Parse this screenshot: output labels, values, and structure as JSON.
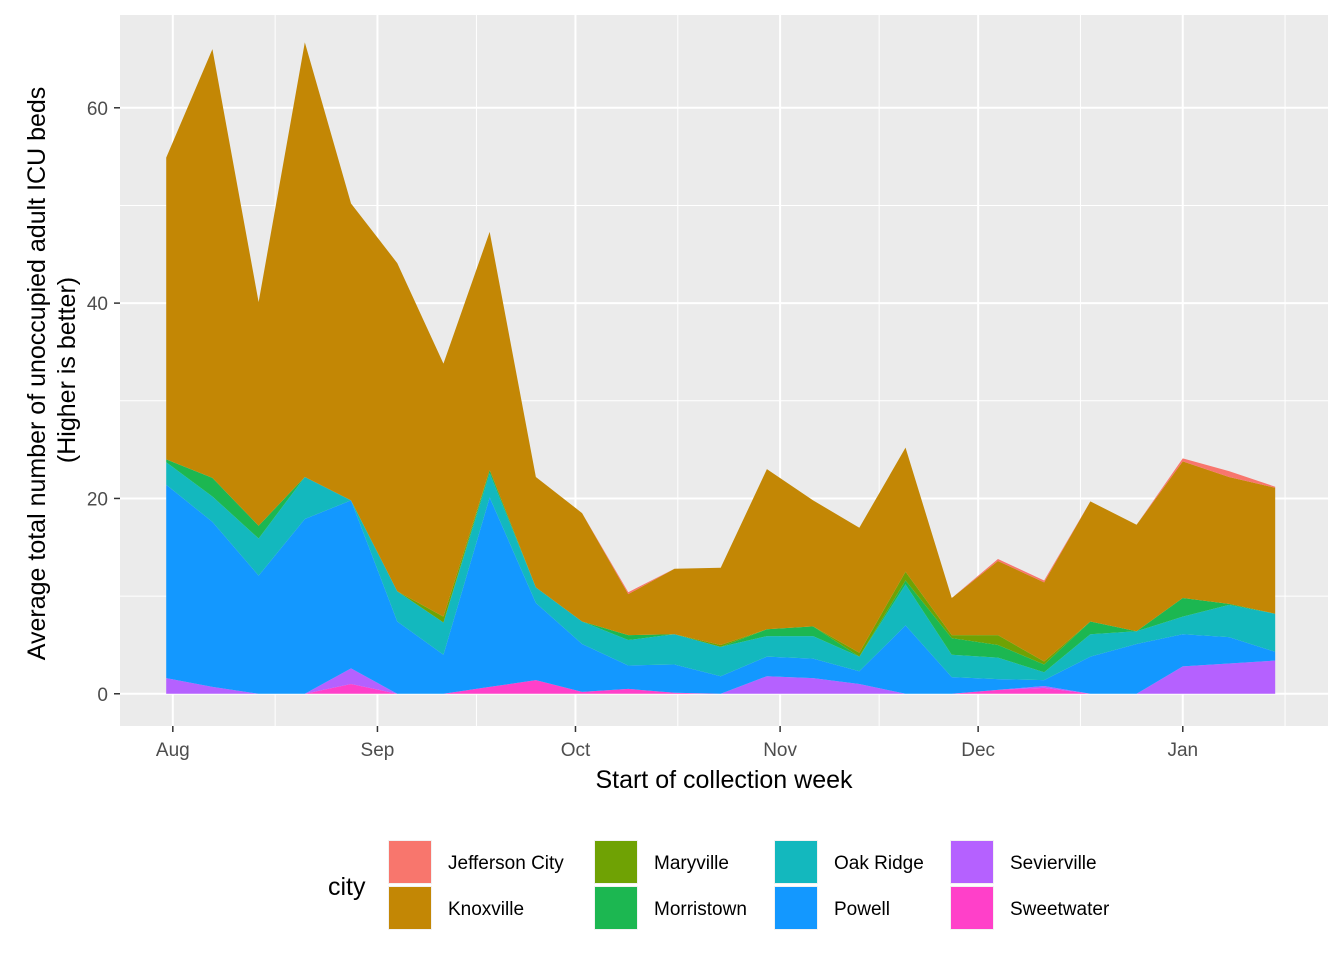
{
  "chart_data": {
    "type": "area",
    "stacked": true,
    "xlabel": "Start of collection week",
    "ylabel_lines": [
      "Average total number of unoccupied adult ICU beds",
      "(Higher is better)"
    ],
    "x_ticks": [
      "Aug",
      "Sep",
      "Oct",
      "Nov",
      "Dec",
      "Jan"
    ],
    "x_tick_dates": [
      "2020-08-01",
      "2020-09-01",
      "2020-10-01",
      "2020-11-01",
      "2020-12-01",
      "2021-01-01"
    ],
    "x_range": [
      "2020-07-24",
      "2021-01-23"
    ],
    "y_ticks": [
      0,
      20,
      40,
      60
    ],
    "ylim": [
      -3.3,
      69.5
    ],
    "grid": true,
    "legend_title": "city",
    "legend_position": "bottom",
    "x": [
      "2020-07-31",
      "2020-08-07",
      "2020-08-14",
      "2020-08-21",
      "2020-08-28",
      "2020-09-04",
      "2020-09-11",
      "2020-09-18",
      "2020-09-25",
      "2020-10-02",
      "2020-10-09",
      "2020-10-16",
      "2020-10-23",
      "2020-10-30",
      "2020-11-06",
      "2020-11-13",
      "2020-11-20",
      "2020-11-27",
      "2020-12-04",
      "2020-12-11",
      "2020-12-18",
      "2020-12-25",
      "2021-01-01",
      "2021-01-08",
      "2021-01-15"
    ],
    "series": [
      {
        "name": "Sweetwater",
        "color": "#FF40C9",
        "values": [
          0,
          0,
          0,
          0,
          1,
          0,
          0,
          0.7,
          1.4,
          0.2,
          0.5,
          0.1,
          0,
          0,
          0,
          0,
          0,
          0,
          0.4,
          0.6,
          0,
          0,
          0,
          0,
          0
        ]
      },
      {
        "name": "Sevierville",
        "color": "#B561FF",
        "values": [
          1.6,
          0.7,
          0,
          0,
          1.6,
          0,
          0,
          0,
          0,
          0,
          0,
          0,
          0,
          1.8,
          1.6,
          1,
          0,
          0,
          0,
          0.2,
          0,
          0,
          2.8,
          3.1,
          3.4
        ]
      },
      {
        "name": "Powell",
        "color": "#1398FF",
        "values": [
          19.8,
          16.9,
          12.1,
          17.9,
          17.2,
          7.4,
          4,
          19.4,
          7.9,
          4.9,
          2.4,
          2.9,
          1.8,
          2,
          2,
          1.3,
          7,
          1.7,
          1.1,
          0.6,
          3.8,
          5.1,
          3.3,
          2.7,
          0.9
        ]
      },
      {
        "name": "Oak Ridge",
        "color": "#13B8BE",
        "values": [
          2.3,
          2.6,
          3.8,
          4.3,
          0,
          3.1,
          3.3,
          2.5,
          1.6,
          2.3,
          2.6,
          3.1,
          3,
          2.1,
          2.3,
          1.5,
          4.2,
          2.3,
          2.2,
          0.8,
          2.3,
          1.3,
          1.8,
          3.3,
          3.9
        ]
      },
      {
        "name": "Morristown",
        "color": "#1CB751",
        "values": [
          0.3,
          1.9,
          1.3,
          0,
          0,
          0,
          0,
          0.3,
          0,
          0,
          0.5,
          0,
          0,
          0.7,
          1,
          0,
          0.4,
          1.7,
          1.3,
          0.8,
          1.3,
          0,
          1.9,
          0.1,
          0
        ]
      },
      {
        "name": "Maryville",
        "color": "#6FA204",
        "values": [
          0,
          0,
          0,
          0,
          0,
          0,
          0.6,
          0,
          0,
          0,
          0,
          0,
          0.2,
          0,
          0,
          0.4,
          0.9,
          0.3,
          1,
          0.3,
          0,
          0,
          0,
          0,
          0
        ]
      },
      {
        "name": "Knoxville",
        "color": "#C38705",
        "values": [
          30.9,
          43.9,
          22.9,
          44.5,
          30.4,
          33.6,
          25.9,
          24.4,
          11.3,
          11.1,
          4.2,
          6.7,
          7.9,
          16.4,
          12.9,
          12.8,
          12.7,
          3.8,
          7.6,
          8.1,
          12.3,
          10.9,
          14,
          13,
          12.9
        ]
      },
      {
        "name": "Jefferson City",
        "color": "#F8766D",
        "values": [
          0,
          0,
          0,
          0,
          0,
          0,
          0,
          0,
          0,
          0,
          0.2,
          0,
          0,
          0,
          0,
          0,
          0,
          0,
          0.2,
          0.2,
          0,
          0,
          0.3,
          0.6,
          0.1
        ]
      }
    ],
    "legend_items": [
      {
        "label": "Jefferson City",
        "color": "#F8766D"
      },
      {
        "label": "Knoxville",
        "color": "#C38705"
      },
      {
        "label": "Maryville",
        "color": "#6FA204"
      },
      {
        "label": "Morristown",
        "color": "#1CB751"
      },
      {
        "label": "Oak Ridge",
        "color": "#13B8BE"
      },
      {
        "label": "Powell",
        "color": "#1398FF"
      },
      {
        "label": "Sevierville",
        "color": "#B561FF"
      },
      {
        "label": "Sweetwater",
        "color": "#FF40C9"
      }
    ]
  }
}
